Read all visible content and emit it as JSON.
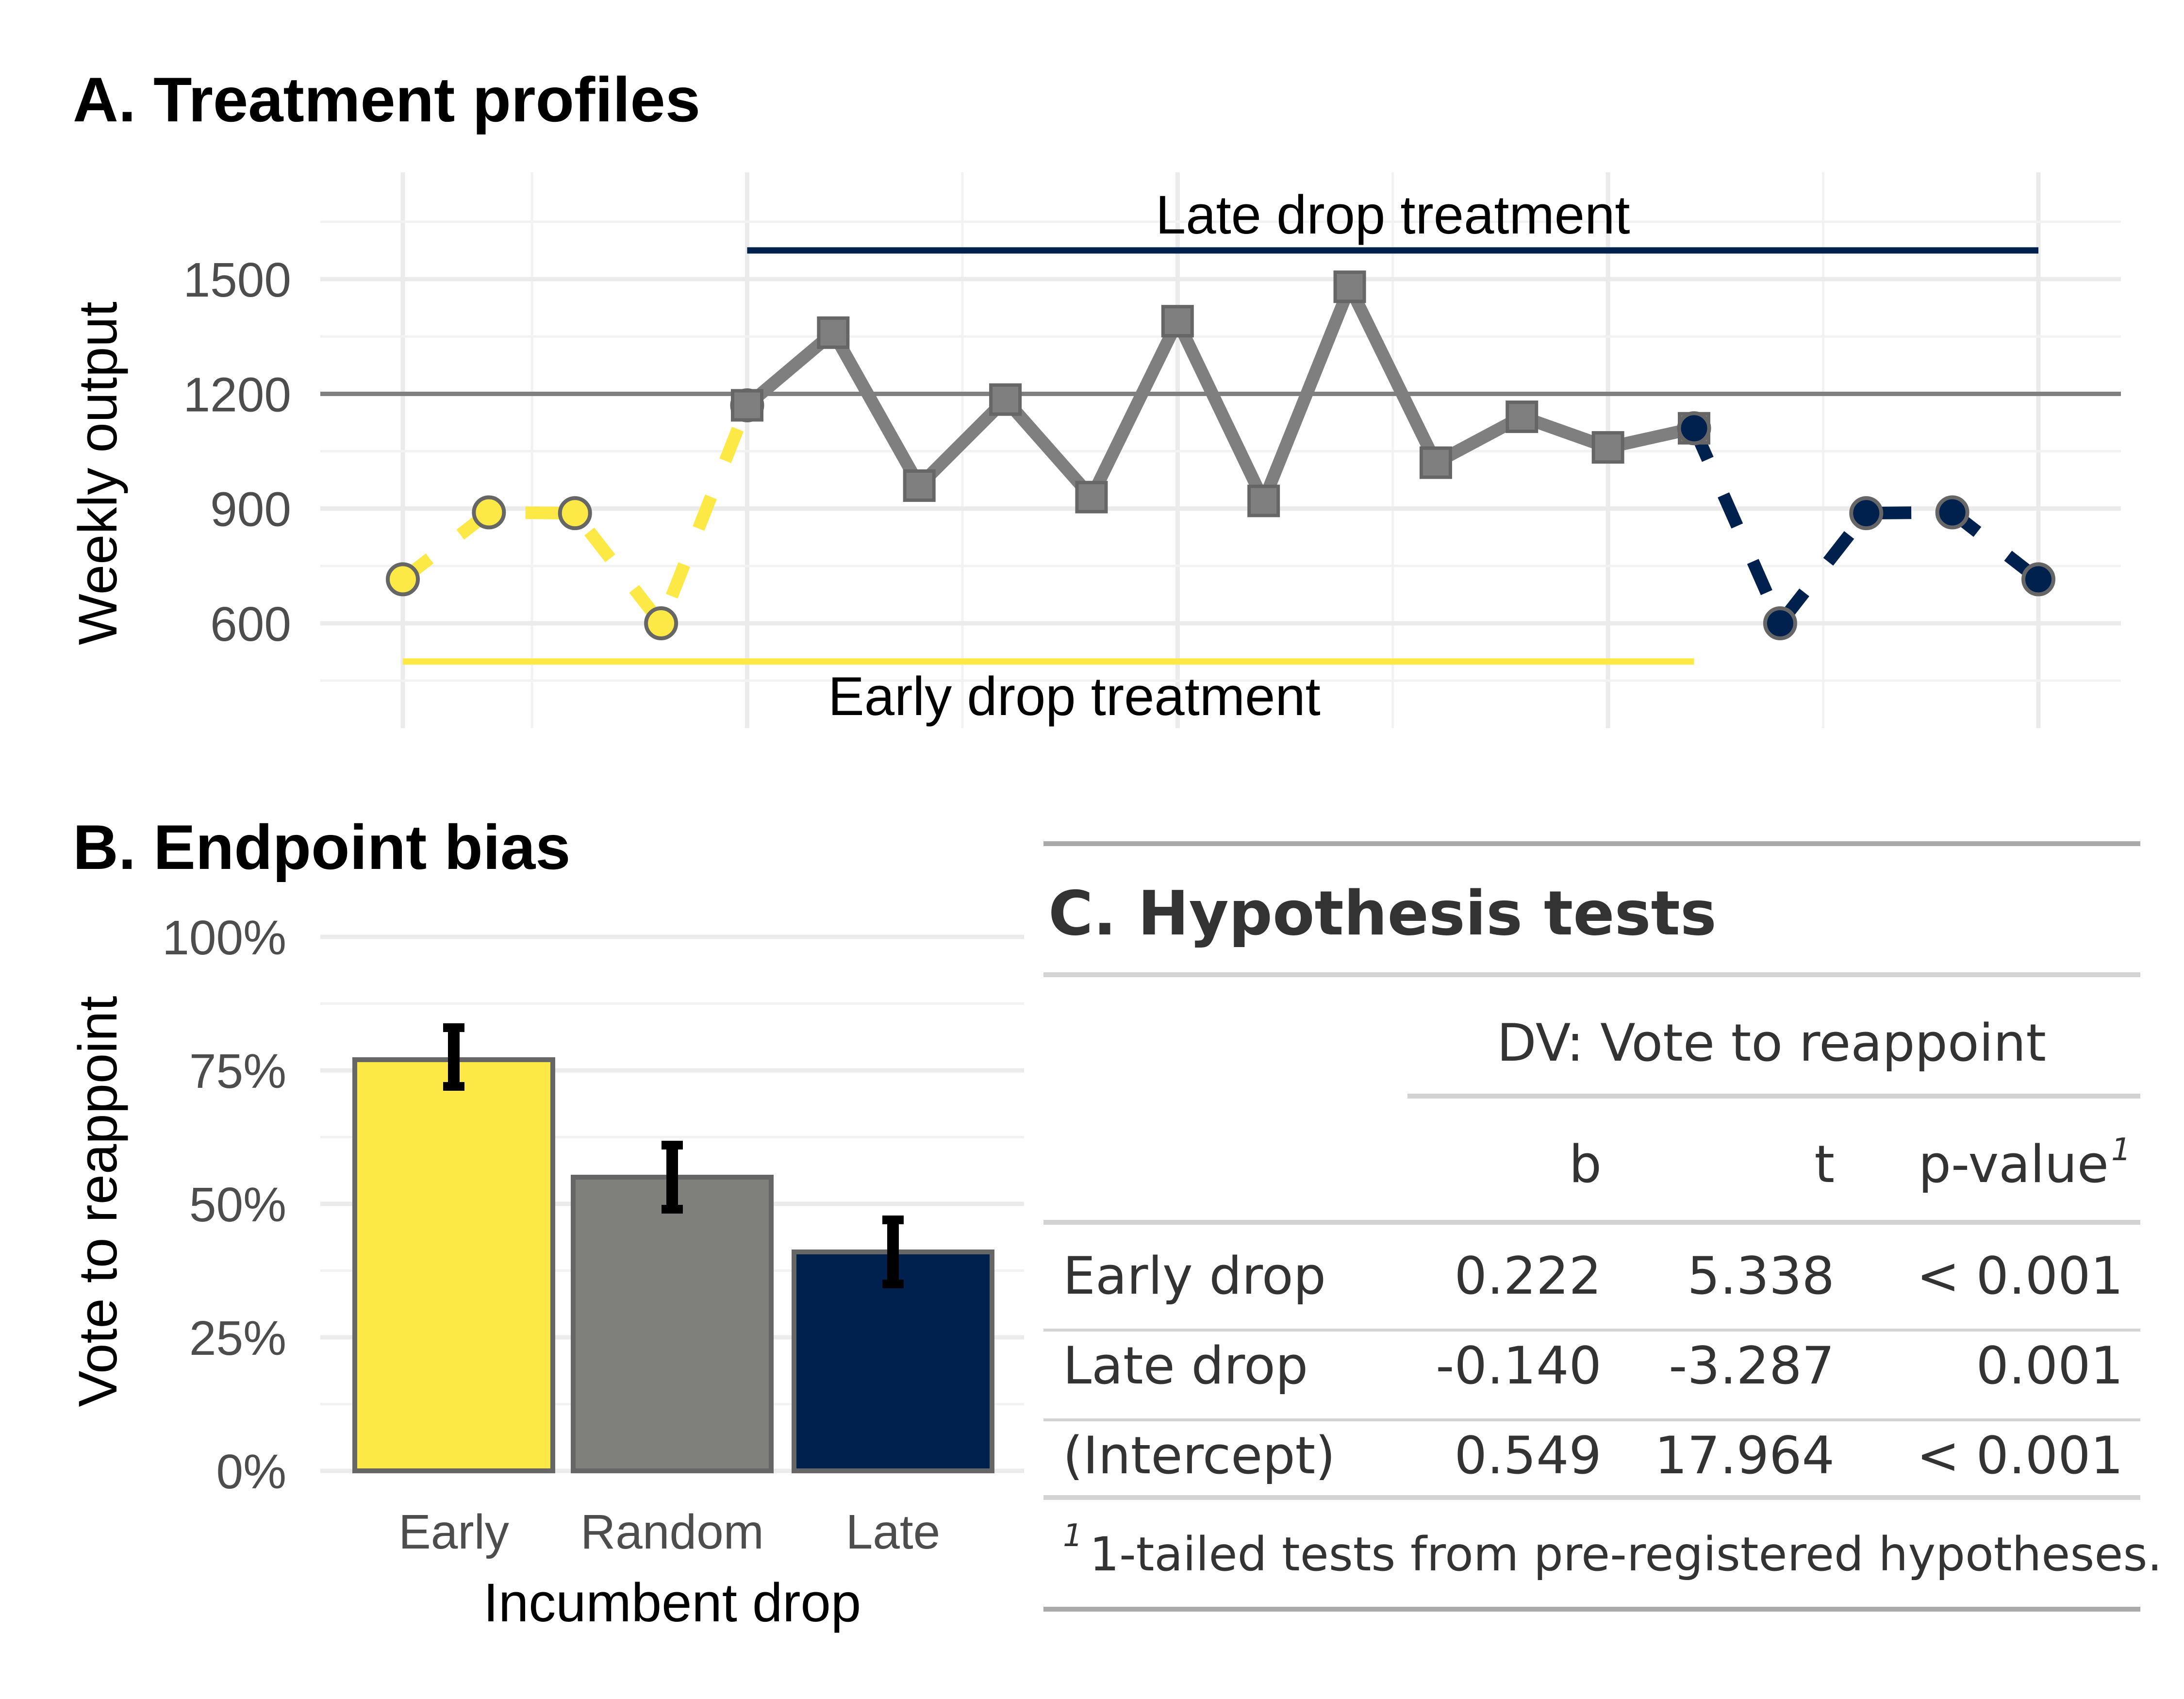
{
  "colors": {
    "early": "#FDE945",
    "random": "#7F7F7B",
    "late": "#00204D",
    "line_gray": "#7F7F7F",
    "marker_edge": "#666666"
  },
  "chart_data": [
    {
      "type": "line",
      "title": "A. Treatment profiles",
      "ylabel": "Weekly output",
      "xlabel": "",
      "yticks": [
        600,
        900,
        1200,
        1500
      ],
      "ylim": [
        450,
        1700
      ],
      "x": [
        1,
        2,
        3,
        4,
        5,
        6,
        7,
        8,
        9,
        10,
        11,
        12,
        13,
        14,
        15,
        16,
        17,
        18,
        19,
        20
      ],
      "grid": true,
      "series": [
        {
          "role": "early",
          "x": [
            1,
            2,
            3,
            4,
            5
          ],
          "values": [
            715,
            890,
            888,
            600,
            1170
          ]
        },
        {
          "role": "random",
          "x": [
            5,
            6,
            7,
            8,
            9,
            10,
            11,
            12,
            13,
            14,
            15,
            16
          ],
          "values": [
            1170,
            1360,
            960,
            1185,
            930,
            1390,
            920,
            1480,
            1020,
            1140,
            1060,
            1110
          ]
        },
        {
          "role": "late",
          "x": [
            16,
            17,
            18,
            19,
            20
          ],
          "values": [
            1110,
            600,
            888,
            890,
            715
          ]
        }
      ],
      "reference_line": 1200,
      "annotations": [
        {
          "text": "Late drop treatment",
          "role": "late",
          "x_start": 5,
          "x_end": 20,
          "y": 1575
        },
        {
          "text": "Early drop treatment",
          "role": "early",
          "x_start": 1,
          "x_end": 16,
          "y": 500
        }
      ]
    },
    {
      "type": "bar",
      "title": "B. Endpoint bias",
      "categories": [
        "Early",
        "Random",
        "Late"
      ],
      "values": [
        0.77,
        0.55,
        0.41
      ],
      "error_low": [
        0.72,
        0.49,
        0.35
      ],
      "error_high": [
        0.83,
        0.61,
        0.47
      ],
      "xlabel": "Incumbent drop",
      "ylabel": "Vote to reappoint",
      "ylim": [
        0,
        1
      ],
      "ytick_labels": [
        "0%",
        "25%",
        "50%",
        "75%",
        "100%"
      ],
      "grid": true
    },
    {
      "type": "table",
      "title": "C. Hypothesis tests",
      "spanner": "DV: Vote to reappoint",
      "columns": [
        "b",
        "t",
        "p-value"
      ],
      "footnote_mark": "1",
      "rows": [
        {
          "label": "Early drop",
          "b": "0.222",
          "t": "5.338",
          "p": "< 0.001"
        },
        {
          "label": "Late drop",
          "b": "-0.140",
          "t": "-3.287",
          "p": "0.001"
        },
        {
          "label": "(Intercept)",
          "b": "0.549",
          "t": "17.964",
          "p": "< 0.001"
        }
      ],
      "footnote": "1-tailed tests from pre-registered hypotheses."
    }
  ]
}
